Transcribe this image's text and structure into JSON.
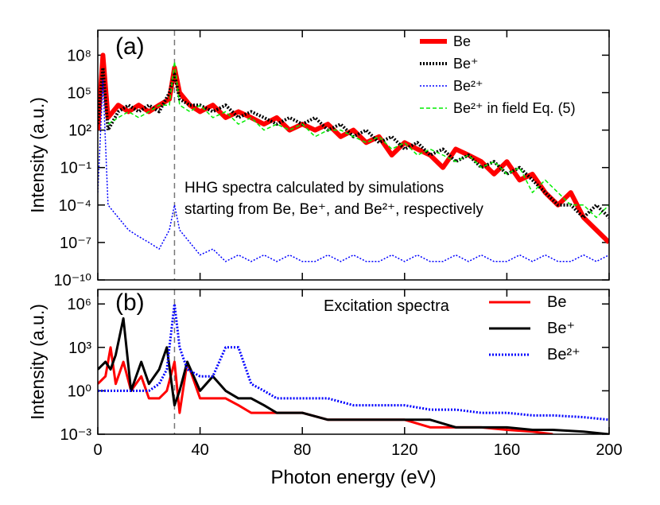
{
  "chart_data": [
    {
      "type": "line",
      "panel_label": "(a)",
      "ylabel": "Intensity (a.u.)",
      "log_y": true,
      "annotation": [
        "HHG spectra calculated by simulations",
        "starting from Be, Be⁺, and Be²⁺, respectively"
      ],
      "xlim": [
        0,
        200
      ],
      "ylim": [
        1e-10,
        10000000000.0
      ],
      "xticks": [
        0,
        40,
        80,
        120,
        160,
        200
      ],
      "yticks": [
        {
          "value": 100000000.0,
          "label": "10⁸"
        },
        {
          "value": 100000.0,
          "label": "10⁵"
        },
        {
          "value": 100,
          "label": "10²"
        },
        {
          "value": 0.1,
          "label": "10⁻¹"
        },
        {
          "value": 0.0001,
          "label": "10⁻⁴"
        },
        {
          "value": 1e-07,
          "label": "10⁻⁷"
        },
        {
          "value": 1e-10,
          "label": "10⁻¹⁰"
        }
      ],
      "vline": 30,
      "x": [
        0,
        2,
        4,
        8,
        12,
        16,
        20,
        24,
        28,
        30,
        32,
        36,
        40,
        45,
        50,
        55,
        60,
        65,
        70,
        75,
        80,
        85,
        90,
        95,
        100,
        105,
        110,
        115,
        120,
        125,
        130,
        135,
        140,
        145,
        150,
        155,
        160,
        165,
        170,
        175,
        180,
        185,
        190,
        195,
        200
      ],
      "series": [
        {
          "name": "Be",
          "color": "#ff0000",
          "width": 6,
          "dash": "solid",
          "values": [
            100,
            100000000.0,
            1000,
            10000.0,
            3000.0,
            10000.0,
            3000.0,
            10000.0,
            30000.0,
            10000000.0,
            100000.0,
            10000.0,
            3000.0,
            10000.0,
            1000.0,
            3000.0,
            1000.0,
            300,
            1000.0,
            100,
            300,
            100,
            300,
            30,
            100,
            10,
            30,
            1,
            10,
            3,
            1,
            0.1,
            3,
            1,
            0.3,
            0.03,
            0.3,
            0.01,
            0.03,
            0.001,
            0.0001,
            0.001,
            1e-05,
            1e-06,
            1e-07
          ]
        },
        {
          "name": "Be⁺",
          "color": "#000000",
          "width": 4,
          "dash": "dotted",
          "values": [
            300,
            10000000.0,
            100,
            3000.0,
            10000.0,
            3000.0,
            10000.0,
            3000.0,
            100000.0,
            3000000.0,
            30000.0,
            10000.0,
            10000.0,
            3000.0,
            10000.0,
            1000.0,
            3000.0,
            1000.0,
            300,
            1000.0,
            300,
            1000.0,
            100,
            300,
            30,
            100,
            10,
            30,
            3,
            10,
            1,
            3,
            0.3,
            1,
            0.1,
            0.3,
            0.03,
            0.1,
            0.01,
            0.001,
            0.0001,
            0.0001,
            1e-05,
            0.0001,
            1e-05
          ]
        },
        {
          "name": "Be²⁺",
          "color": "#0000ff",
          "width": 1.5,
          "dash": "dotted",
          "values": [
            0.001,
            1000000.0,
            0.0001,
            1e-05,
            1e-06,
            3e-07,
            1e-07,
            3e-08,
            1e-06,
            0.0001,
            1e-06,
            1e-07,
            1e-08,
            3e-08,
            3e-09,
            1e-08,
            3e-09,
            1e-08,
            3e-09,
            1e-08,
            3e-09,
            3e-09,
            1e-08,
            3e-09,
            1e-08,
            3e-09,
            3e-09,
            1e-08,
            3e-09,
            1e-08,
            3e-09,
            3e-09,
            1e-08,
            3e-09,
            1e-08,
            3e-09,
            3e-09,
            1e-08,
            3e-09,
            1e-08,
            3e-09,
            3e-09,
            1e-08,
            3e-09,
            1e-08
          ]
        },
        {
          "name": "Be²⁺ in field Eq. (5)",
          "color": "#00ee00",
          "width": 1.5,
          "dash": "dashed",
          "values": [
            null,
            null,
            300,
            1000.0,
            3000.0,
            1000.0,
            3000.0,
            10000.0,
            10000.0,
            30000000.0,
            10000.0,
            3000.0,
            10000.0,
            1000.0,
            3000.0,
            300,
            1000.0,
            100,
            300,
            100,
            300,
            30,
            100,
            100,
            30,
            10,
            30,
            3,
            10,
            1,
            3,
            1,
            0.3,
            1,
            0.1,
            0.3,
            0.03,
            0.1,
            0.001,
            0.01,
            0.001,
            0.0001,
            0.0001,
            1e-05,
            0.0001
          ]
        }
      ]
    },
    {
      "type": "line",
      "panel_label": "(b)",
      "ylabel": "Intensity (a.u.)",
      "xlabel": "Photon energy (eV)",
      "log_y": true,
      "annotation": [
        "Excitation spectra"
      ],
      "xlim": [
        0,
        200
      ],
      "ylim": [
        0.001,
        10000000.0
      ],
      "xticks": [
        0,
        40,
        80,
        120,
        160,
        200
      ],
      "yticks": [
        {
          "value": 1000000.0,
          "label": "10⁶"
        },
        {
          "value": 1000,
          "label": "10³"
        },
        {
          "value": 1,
          "label": "10⁰"
        },
        {
          "value": 0.001,
          "label": "10⁻³"
        }
      ],
      "vline": 30,
      "x": [
        0,
        3,
        5,
        7,
        10,
        13,
        17,
        20,
        24,
        27,
        30,
        32,
        35,
        40,
        45,
        50,
        55,
        60,
        65,
        70,
        80,
        90,
        100,
        110,
        120,
        130,
        140,
        150,
        160,
        170,
        178,
        190,
        200
      ],
      "series": [
        {
          "name": "Be",
          "color": "#ff0000",
          "width": 3,
          "dash": "solid",
          "values": [
            3,
            10,
            1000,
            3,
            100,
            1,
            10,
            0.3,
            0.3,
            1,
            100,
            0.03,
            100,
            0.3,
            0.3,
            0.3,
            0.1,
            0.03,
            0.03,
            0.03,
            0.03,
            0.01,
            0.01,
            0.01,
            0.01,
            0.003,
            0.003,
            0.003,
            0.002,
            0.0015,
            0.001,
            null,
            null
          ]
        },
        {
          "name": "Be⁺",
          "color": "#000000",
          "width": 3,
          "dash": "solid",
          "values": [
            30,
            100,
            30,
            300,
            100000.0,
            1,
            100,
            3,
            30,
            1000,
            0.1,
            1,
            100,
            1,
            10,
            1,
            0.3,
            0.3,
            0.1,
            0.03,
            0.03,
            0.01,
            0.01,
            0.01,
            0.01,
            0.01,
            0.003,
            0.003,
            0.003,
            0.002,
            0.002,
            0.0015,
            0.001
          ]
        },
        {
          "name": "Be²⁺",
          "color": "#0000ff",
          "width": 3,
          "dash": "dotted",
          "values": [
            1,
            1,
            1,
            1,
            1,
            1,
            1,
            1,
            3,
            30,
            1000000.0,
            1000,
            30,
            10,
            10,
            1000,
            1000,
            3,
            1,
            0.3,
            0.3,
            0.3,
            0.1,
            0.1,
            0.1,
            0.05,
            0.05,
            0.03,
            0.03,
            0.02,
            0.02,
            0.015,
            0.01
          ]
        }
      ]
    }
  ]
}
